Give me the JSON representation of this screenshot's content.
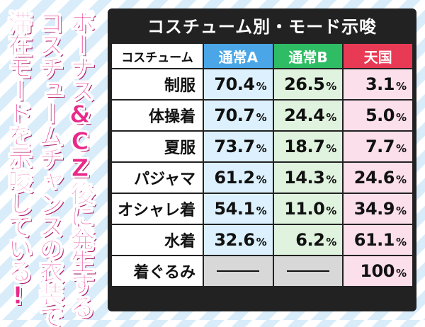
{
  "sidebar": {
    "lines": [
      "ボーナス&CZ後に発生する",
      "コスチュームチャンスの衣装で",
      "滞在モードを示唆している!"
    ]
  },
  "table": {
    "title": "コスチューム別・モード示唆",
    "headers": {
      "label": "コスチューム",
      "a": "通常A",
      "b": "通常B",
      "h": "天国"
    },
    "pct_unit": "%",
    "rows": [
      {
        "name": "制服",
        "a": "70.4",
        "b": "26.5",
        "h": "3.1"
      },
      {
        "name": "体操着",
        "a": "70.7",
        "b": "24.4",
        "h": "5.0"
      },
      {
        "name": "夏服",
        "a": "73.7",
        "b": "18.7",
        "h": "7.7"
      },
      {
        "name": "パジャマ",
        "a": "61.2",
        "b": "14.3",
        "h": "24.6"
      },
      {
        "name": "オシャレ着",
        "a": "54.1",
        "b": "11.0",
        "h": "34.9"
      },
      {
        "name": "水着",
        "a": "32.6",
        "b": "6.2",
        "h": "61.1"
      },
      {
        "name": "着ぐるみ",
        "a": null,
        "b": null,
        "h": "100"
      }
    ]
  },
  "colors": {
    "title_bg": "#222222",
    "header_a": "#4aa6e6",
    "header_b": "#2ebc64",
    "header_heaven": "#e83a54",
    "sidebar_text": "#e8298a"
  }
}
